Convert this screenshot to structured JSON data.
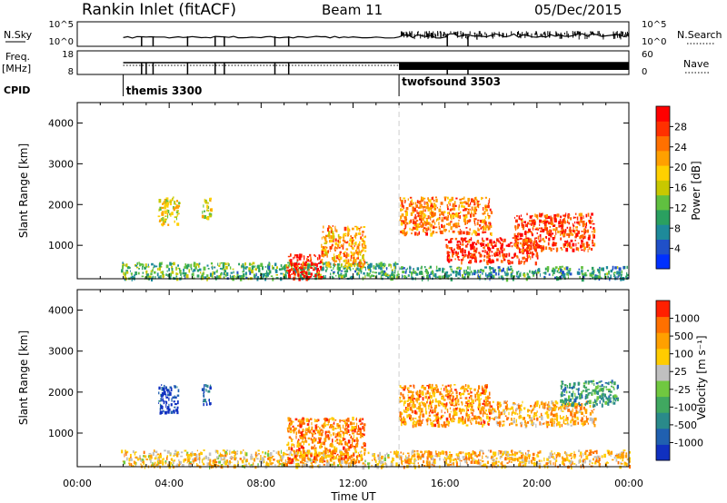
{
  "header": {
    "station": "Rankin Inlet (fitACF)",
    "beam": "Beam 11",
    "date": "05/Dec/2015"
  },
  "top_panels": {
    "nsky_label": "N.Sky",
    "nsky_ticks": [
      "10^5",
      "10^0"
    ],
    "nsearch_label": "N.Search",
    "nsearch_ticks": [
      "10^5",
      "10^0"
    ],
    "freq_label_1": "Freq.",
    "freq_label_2": "[MHz]",
    "freq_ticks": [
      "18",
      "8"
    ],
    "nave_label": "Nave",
    "nave_ticks": [
      "60",
      "0"
    ],
    "cpid_label": "CPID",
    "cpid_modes": [
      {
        "name": "themis 3300",
        "start_hour": 2.0
      },
      {
        "name": "twofsound 3503",
        "start_hour": 14.0
      }
    ]
  },
  "chart_data": [
    {
      "type": "heatmap",
      "title": "",
      "xlabel": "Time UT",
      "ylabel": "Slant Range [km]",
      "xlim": [
        0,
        24
      ],
      "ylim": [
        180,
        4500
      ],
      "x_ticks": [
        "00:00",
        "04:00",
        "08:00",
        "12:00",
        "16:00",
        "20:00",
        "00:00"
      ],
      "y_ticks": [
        1000,
        2000,
        3000,
        4000
      ],
      "colorbar": {
        "label": "Power [dB]",
        "ticks": [
          "28",
          "24",
          "20",
          "16",
          "12",
          "8",
          "4"
        ],
        "colors": [
          "#0030ff",
          "#2050c8",
          "#1e8a9a",
          "#2aa060",
          "#60c040",
          "#c8c800",
          "#ffd000",
          "#ffa000",
          "#ff7000",
          "#ff3000",
          "#ff0000"
        ]
      },
      "regions": [
        {
          "t": [
            1.9,
            14.0
          ],
          "r": [
            200,
            600
          ],
          "level": 0.35
        },
        {
          "t": [
            3.5,
            4.4
          ],
          "r": [
            1500,
            2200
          ],
          "level": 0.55
        },
        {
          "t": [
            5.4,
            5.8
          ],
          "r": [
            1700,
            2200
          ],
          "level": 0.5
        },
        {
          "t": [
            9.1,
            10.6
          ],
          "r": [
            200,
            800
          ],
          "level": 0.95
        },
        {
          "t": [
            10.6,
            12.5
          ],
          "r": [
            500,
            1500
          ],
          "level": 0.7
        },
        {
          "t": [
            14.0,
            18.0
          ],
          "r": [
            1300,
            2200
          ],
          "level": 0.75
        },
        {
          "t": [
            16.0,
            20.0
          ],
          "r": [
            600,
            1200
          ],
          "level": 0.9
        },
        {
          "t": [
            19.0,
            22.5
          ],
          "r": [
            900,
            1800
          ],
          "level": 0.85
        },
        {
          "t": [
            14.0,
            24.0
          ],
          "r": [
            200,
            500
          ],
          "level": 0.3
        }
      ]
    },
    {
      "type": "heatmap",
      "title": "",
      "xlabel": "Time UT",
      "ylabel": "Slant Range [km]",
      "xlim": [
        0,
        24
      ],
      "ylim": [
        180,
        4500
      ],
      "x_ticks": [
        "00:00",
        "04:00",
        "08:00",
        "12:00",
        "16:00",
        "20:00",
        "00:00"
      ],
      "y_ticks": [
        1000,
        2000,
        3000,
        4000
      ],
      "colorbar": {
        "label": "Velocity [m s⁻¹]",
        "ticks": [
          "1000",
          "500",
          "100",
          "25",
          "-25",
          "-100",
          "-500",
          "-1000"
        ],
        "colors": [
          "#1030c0",
          "#2060b0",
          "#2a8a8a",
          "#40a860",
          "#70c840",
          "#c0c0c0",
          "#ffcc00",
          "#ffa000",
          "#ff7000",
          "#ff2000"
        ]
      },
      "regions": [
        {
          "t": [
            1.9,
            14.0
          ],
          "r": [
            200,
            600
          ],
          "level": 0.65
        },
        {
          "t": [
            3.5,
            4.4
          ],
          "r": [
            1500,
            2200
          ],
          "level": 0.05
        },
        {
          "t": [
            5.4,
            5.8
          ],
          "r": [
            1700,
            2200
          ],
          "level": 0.1
        },
        {
          "t": [
            9.1,
            12.5
          ],
          "r": [
            300,
            1400
          ],
          "level": 0.8
        },
        {
          "t": [
            14.0,
            18.0
          ],
          "r": [
            1200,
            2200
          ],
          "level": 0.78
        },
        {
          "t": [
            18.0,
            22.5
          ],
          "r": [
            1200,
            1800
          ],
          "level": 0.72
        },
        {
          "t": [
            21.0,
            23.5
          ],
          "r": [
            1700,
            2300
          ],
          "level": 0.3
        },
        {
          "t": [
            14.0,
            24.0
          ],
          "r": [
            200,
            600
          ],
          "level": 0.7
        }
      ]
    }
  ]
}
